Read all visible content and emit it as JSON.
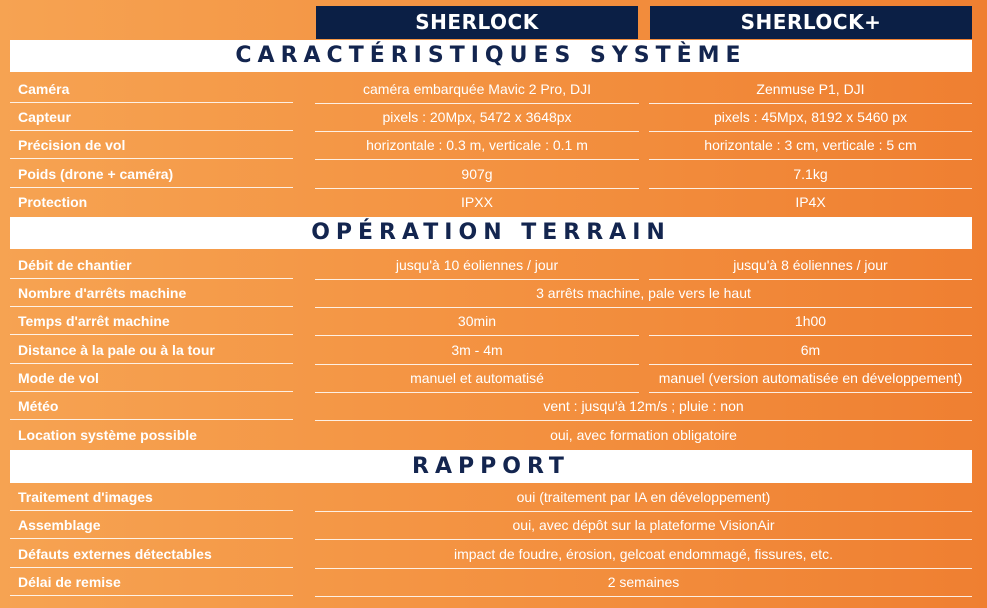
{
  "header": {
    "col1": "SHERLOCK",
    "col2": "SHERLOCK+"
  },
  "sections": [
    {
      "title": "CARACTÉRISTIQUES SYSTÈME",
      "rows": [
        {
          "label": "Caméra",
          "v1": "caméra embarquée Mavic 2 Pro, DJI",
          "v2": "Zenmuse P1, DJI"
        },
        {
          "label": "Capteur",
          "v1": "pixels : 20Mpx, 5472 x 3648px",
          "v2": "pixels : 45Mpx, 8192 x 5460 px"
        },
        {
          "label": "Précision de vol",
          "v1": "horizontale : 0.3 m, verticale : 0.1 m",
          "v2": "horizontale : 3 cm, verticale : 5 cm"
        },
        {
          "label": "Poids (drone + caméra)",
          "v1": "907g",
          "v2": "7.1kg"
        },
        {
          "label": "Protection",
          "v1": "IPXX",
          "v2": "IP4X"
        }
      ]
    },
    {
      "title": "OPÉRATION TERRAIN",
      "rows": [
        {
          "label": "Débit de chantier",
          "v1": "jusqu'à 10 éoliennes / jour",
          "v2": "jusqu'à 8 éoliennes / jour"
        },
        {
          "label": "Nombre d'arrêts machine",
          "span": "3 arrêts machine, pale vers le haut"
        },
        {
          "label": "Temps d'arrêt machine",
          "v1": "30min",
          "v2": "1h00"
        },
        {
          "label": "Distance à la pale ou à la tour",
          "v1": "3m - 4m",
          "v2": "6m"
        },
        {
          "label": "Mode de vol",
          "v1": "manuel et automatisé",
          "v2": "manuel (version automatisée en développement)"
        },
        {
          "label": "Météo",
          "span": "vent : jusqu'à 12m/s ; pluie : non"
        },
        {
          "label": "Location système possible",
          "span": "oui, avec formation obligatoire"
        }
      ]
    },
    {
      "title": "RAPPORT",
      "rows": [
        {
          "label": "Traitement d'images",
          "span": "oui (traitement par IA en développement)"
        },
        {
          "label": "Assemblage",
          "span": "oui, avec dépôt sur la plateforme VisionAir"
        },
        {
          "label": "Défauts externes détectables",
          "span": "impact de foudre, érosion, gelcoat endommagé, fissures, etc."
        },
        {
          "label": "Délai de remise",
          "span": "2 semaines"
        }
      ]
    }
  ]
}
